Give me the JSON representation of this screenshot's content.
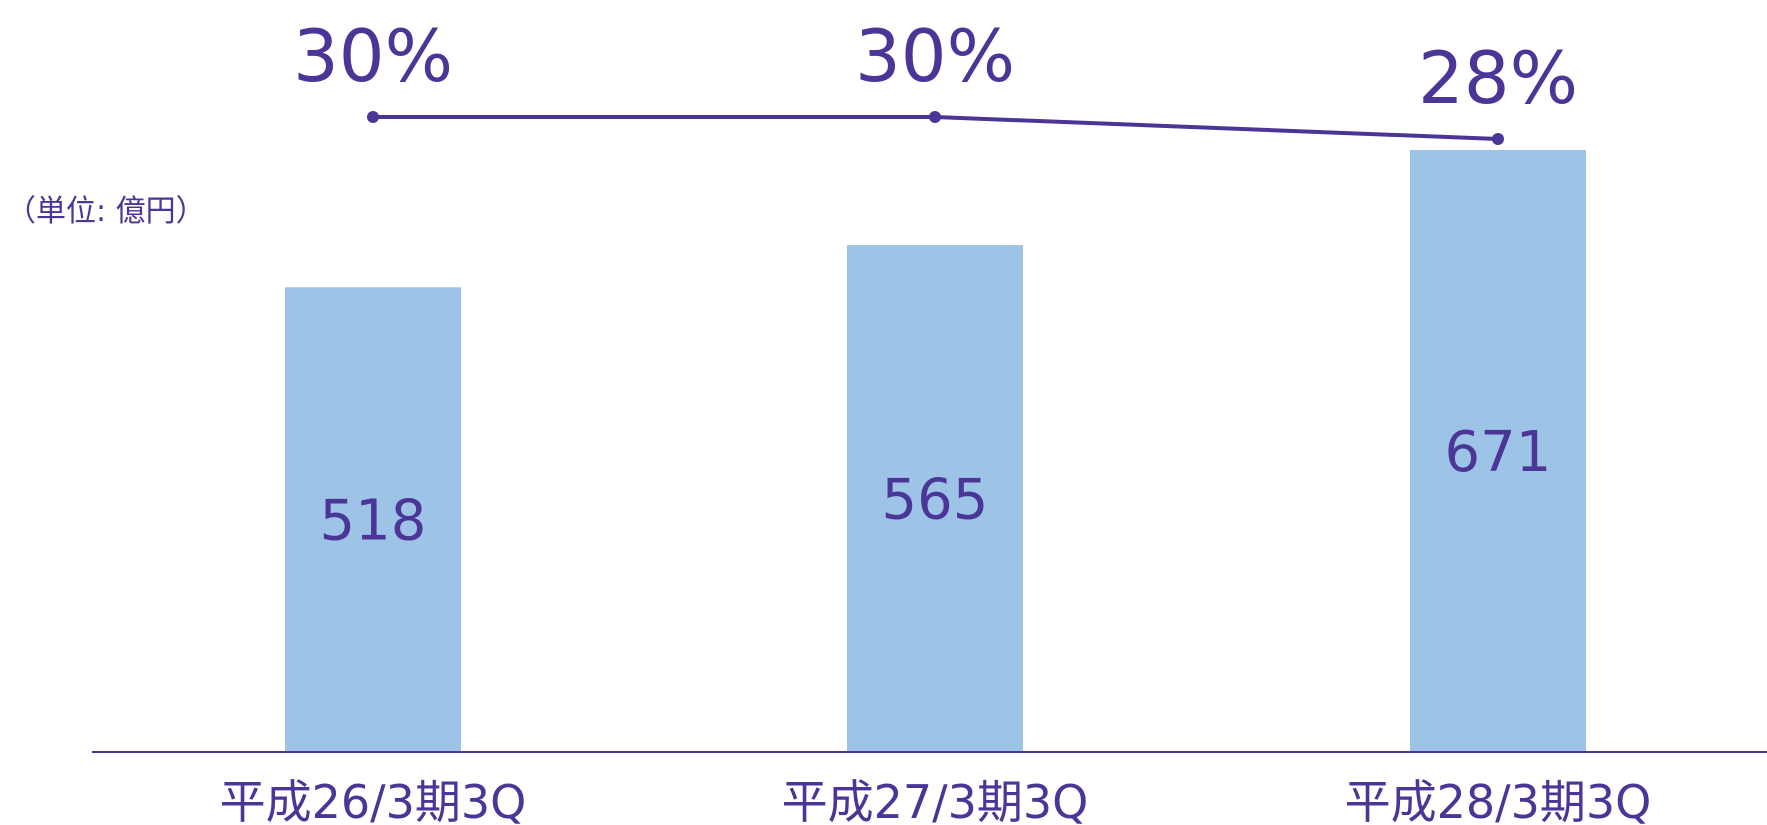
{
  "unit": "（単位: 億円）",
  "colors": {
    "bar": "#9dc3e6",
    "accent": "#4b3596",
    "axis": "#4b3596",
    "background": "#ffffff"
  },
  "chart_data": {
    "type": "bar",
    "categories": [
      "平成26/3期3Q",
      "平成27/3期3Q",
      "平成28/3期3Q"
    ],
    "series": [
      {
        "type": "bar",
        "values": [
          518,
          565,
          671
        ],
        "value_labels": [
          "518",
          "565",
          "671"
        ]
      },
      {
        "type": "line",
        "values": [
          30,
          30,
          28
        ],
        "value_labels": [
          "30%",
          "30%",
          "28%"
        ]
      }
    ],
    "ylim": [
      0,
      671
    ],
    "grid": false,
    "legend": "none"
  }
}
